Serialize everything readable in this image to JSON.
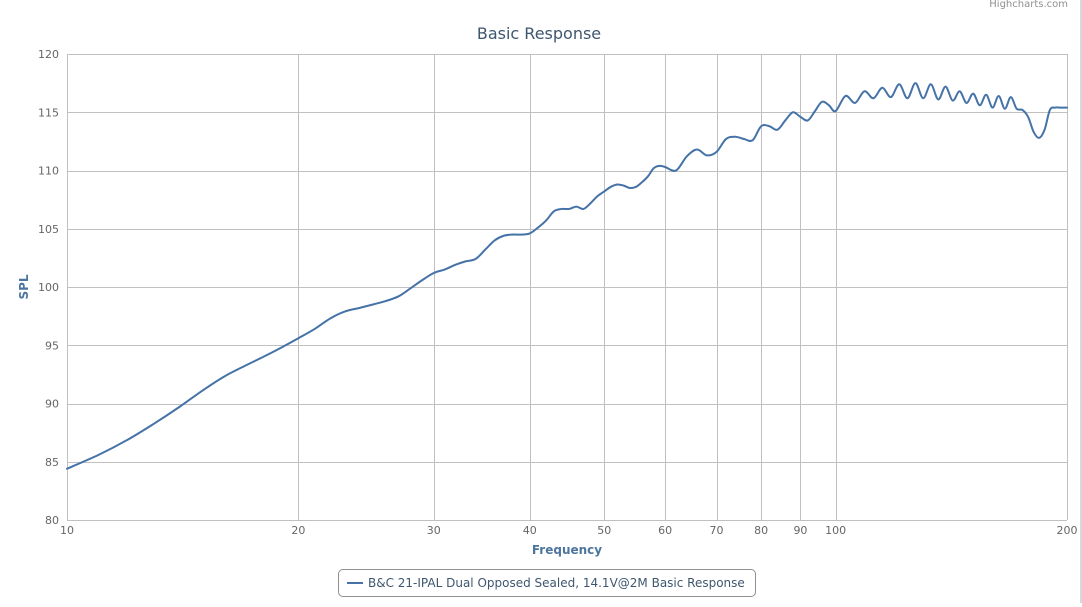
{
  "credits": "Highcharts.com",
  "colors": {
    "series": "#4572a7",
    "grid": "#c0c0c0",
    "axis_title": "#4d759e",
    "title": "#3e576f",
    "tick_label": "#666666"
  },
  "chart_data": {
    "type": "line",
    "title": "Basic Response",
    "xlabel": "Frequency",
    "ylabel": "SPL",
    "x_scale": "log",
    "xlim": [
      10,
      200
    ],
    "ylim": [
      80,
      120
    ],
    "x_ticks": [
      10,
      20,
      30,
      40,
      50,
      60,
      70,
      80,
      90,
      100,
      200
    ],
    "y_ticks": [
      80,
      85,
      90,
      95,
      100,
      105,
      110,
      115,
      120
    ],
    "grid": true,
    "legend_position": "bottom-center",
    "series": [
      {
        "name": "B&C 21-IPAL Dual Opposed Sealed, 14.1V@2M Basic Response",
        "x": [
          10,
          11,
          12,
          13,
          14,
          15,
          16,
          17,
          18,
          19,
          20,
          21,
          22,
          23,
          24,
          25,
          26,
          27,
          28,
          29,
          30,
          31,
          32,
          33,
          34,
          35,
          36,
          37,
          38,
          39,
          40,
          41,
          42,
          43,
          44,
          45,
          46,
          47,
          48,
          49,
          50,
          51,
          52,
          53,
          54,
          55,
          56,
          57,
          58,
          59,
          60,
          62,
          64,
          66,
          68,
          70,
          72,
          74,
          76,
          78,
          80,
          82,
          84,
          86,
          88,
          90,
          92,
          94,
          96,
          98,
          100,
          103,
          106,
          109,
          112,
          115,
          118,
          121,
          124,
          127,
          130,
          133,
          136,
          139,
          142,
          145,
          148,
          151,
          154,
          157,
          160,
          163,
          166,
          169,
          172,
          175,
          178,
          181,
          184,
          187,
          190,
          193,
          196,
          199,
          200
        ],
        "y": [
          84.4,
          85.6,
          86.9,
          88.3,
          89.7,
          91.1,
          92.3,
          93.2,
          94.0,
          94.8,
          95.6,
          96.4,
          97.3,
          97.9,
          98.2,
          98.5,
          98.8,
          99.2,
          99.9,
          100.6,
          101.2,
          101.5,
          101.9,
          102.2,
          102.4,
          103.2,
          104.0,
          104.4,
          104.5,
          104.5,
          104.6,
          105.1,
          105.7,
          106.5,
          106.7,
          106.7,
          106.9,
          106.7,
          107.2,
          107.8,
          108.2,
          108.6,
          108.8,
          108.7,
          108.5,
          108.6,
          109.0,
          109.5,
          110.2,
          110.4,
          110.3,
          110.0,
          111.2,
          111.8,
          111.3,
          111.6,
          112.7,
          112.9,
          112.7,
          112.6,
          113.8,
          113.8,
          113.5,
          114.3,
          115.0,
          114.6,
          114.3,
          115.1,
          115.9,
          115.6,
          115.1,
          116.4,
          115.8,
          116.8,
          116.2,
          117.1,
          116.3,
          117.4,
          116.2,
          117.5,
          116.2,
          117.4,
          116.1,
          117.2,
          116.0,
          116.8,
          115.8,
          116.6,
          115.6,
          116.5,
          115.4,
          116.4,
          115.3,
          116.3,
          115.3,
          115.2,
          114.6,
          113.3,
          112.8,
          113.5,
          115.2,
          115.4,
          115.4,
          115.4,
          115.4
        ]
      }
    ]
  }
}
